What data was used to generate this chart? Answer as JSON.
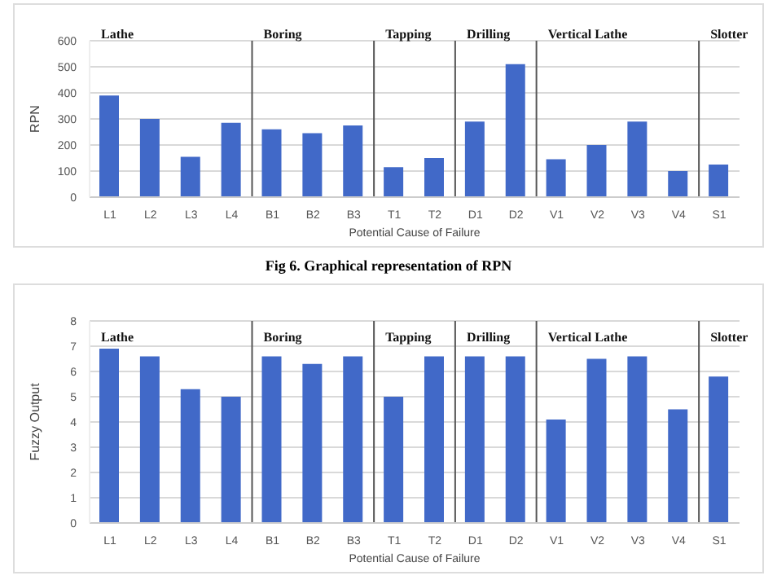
{
  "chart_data": [
    {
      "type": "bar",
      "categories": [
        "L1",
        "L2",
        "L3",
        "L4",
        "B1",
        "B2",
        "B3",
        "T1",
        "T2",
        "D1",
        "D2",
        "V1",
        "V2",
        "V3",
        "V4",
        "S1"
      ],
      "values": [
        390,
        300,
        155,
        285,
        260,
        245,
        275,
        115,
        150,
        290,
        510,
        145,
        200,
        290,
        100,
        125
      ],
      "color": "#4169c8",
      "ylabel": "RPN",
      "xlabel": "Potential Cause of Failure",
      "ylim": [
        0,
        600
      ],
      "yticks": [
        0,
        100,
        200,
        300,
        400,
        500,
        600
      ],
      "grid": "y",
      "annotations": [
        "Lathe",
        "Boring",
        "Tapping",
        "Drilling",
        "Vertical Lathe",
        "Slotter",
        "Fig 6. Graphical representation of RPN"
      ]
    },
    {
      "type": "bar",
      "categories": [
        "L1",
        "L2",
        "L3",
        "L4",
        "B1",
        "B2",
        "B3",
        "T1",
        "T2",
        "D1",
        "D2",
        "V1",
        "V2",
        "V3",
        "V4",
        "S1"
      ],
      "values": [
        6.9,
        6.6,
        5.3,
        5.0,
        6.6,
        6.3,
        6.6,
        5.0,
        6.6,
        6.6,
        6.6,
        4.1,
        6.5,
        6.6,
        4.5,
        5.8
      ],
      "color": "#4169c8",
      "ylabel": "Fuzzy Output",
      "xlabel": "Potential Cause of Failure",
      "ylim": [
        0,
        8
      ],
      "yticks": [
        0,
        1,
        2,
        3,
        4,
        5,
        6,
        7,
        8
      ],
      "grid": "y",
      "annotations": [
        "Lathe",
        "Boring",
        "Tapping",
        "Drilling",
        "Vertical Lathe",
        "Slotter"
      ]
    }
  ]
}
